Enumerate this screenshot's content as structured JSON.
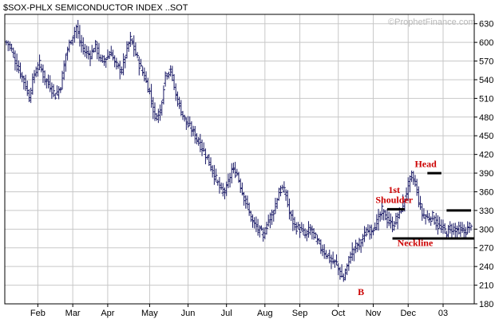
{
  "chart_data": {
    "type": "bar",
    "subtype": "ohlc",
    "title": "$SOX-PHLX SEMICONDUCTOR INDEX ..SOT",
    "watermark": "©ProphetFinance.com",
    "xlabel": "",
    "ylabel": "",
    "ylim": [
      180,
      645
    ],
    "yticks": [
      180,
      210,
      240,
      270,
      300,
      330,
      360,
      390,
      420,
      450,
      480,
      510,
      540,
      570,
      600,
      630
    ],
    "xtick_labels": [
      "Feb",
      "Mar",
      "Apr",
      "May",
      "Jun",
      "Jul",
      "Aug",
      "Sep",
      "Oct",
      "Nov",
      "Dec",
      "03"
    ],
    "xtick_index": [
      18,
      38,
      58,
      82,
      104,
      126,
      148,
      168,
      190,
      210,
      230,
      250
    ],
    "grid": true,
    "colors": {
      "bars": "#1a1a66",
      "grid": "#c8c8c8",
      "levels": "#000000",
      "annotation": "#cc0000",
      "frame": "#000000"
    },
    "series": [
      {
        "type": "ohlc",
        "waypoints": [
          [
            0,
            600
          ],
          [
            2,
            595
          ],
          [
            4,
            580
          ],
          [
            6,
            562
          ],
          [
            9,
            545
          ],
          [
            11,
            530
          ],
          [
            13,
            512
          ],
          [
            16,
            550
          ],
          [
            19,
            565
          ],
          [
            22,
            540
          ],
          [
            25,
            530
          ],
          [
            28,
            515
          ],
          [
            31,
            530
          ],
          [
            34,
            580
          ],
          [
            37,
            605
          ],
          [
            40,
            625
          ],
          [
            42,
            600
          ],
          [
            45,
            585
          ],
          [
            48,
            580
          ],
          [
            51,
            595
          ],
          [
            54,
            570
          ],
          [
            57,
            575
          ],
          [
            60,
            585
          ],
          [
            62,
            565
          ],
          [
            64,
            560
          ],
          [
            66,
            555
          ],
          [
            69,
            590
          ],
          [
            71,
            605
          ],
          [
            73,
            590
          ],
          [
            76,
            565
          ],
          [
            79,
            545
          ],
          [
            82,
            520
          ],
          [
            85,
            480
          ],
          [
            88,
            490
          ],
          [
            91,
            550
          ],
          [
            94,
            555
          ],
          [
            97,
            515
          ],
          [
            100,
            490
          ],
          [
            103,
            470
          ],
          [
            106,
            460
          ],
          [
            110,
            440
          ],
          [
            114,
            420
          ],
          [
            117,
            400
          ],
          [
            120,
            380
          ],
          [
            123,
            360
          ],
          [
            126,
            365
          ],
          [
            129,
            395
          ],
          [
            132,
            390
          ],
          [
            135,
            360
          ],
          [
            138,
            335
          ],
          [
            141,
            310
          ],
          [
            144,
            300
          ],
          [
            147,
            290
          ],
          [
            150,
            315
          ],
          [
            153,
            330
          ],
          [
            156,
            360
          ],
          [
            158,
            365
          ],
          [
            160,
            355
          ],
          [
            162,
            325
          ],
          [
            165,
            305
          ],
          [
            168,
            300
          ],
          [
            171,
            290
          ],
          [
            174,
            300
          ],
          [
            177,
            285
          ],
          [
            180,
            270
          ],
          [
            183,
            260
          ],
          [
            186,
            248
          ],
          [
            189,
            245
          ],
          [
            191,
            228
          ],
          [
            193,
            220
          ],
          [
            195,
            240
          ],
          [
            197,
            260
          ],
          [
            200,
            272
          ],
          [
            203,
            280
          ],
          [
            206,
            295
          ],
          [
            209,
            300
          ],
          [
            212,
            310
          ],
          [
            215,
            330
          ],
          [
            218,
            315
          ],
          [
            221,
            305
          ],
          [
            224,
            320
          ],
          [
            227,
            340
          ],
          [
            230,
            370
          ],
          [
            232,
            385
          ],
          [
            234,
            375
          ],
          [
            236,
            345
          ],
          [
            238,
            325
          ],
          [
            241,
            318
          ],
          [
            244,
            320
          ],
          [
            247,
            305
          ],
          [
            250,
            300
          ],
          [
            252,
            295
          ],
          [
            254,
            302
          ],
          [
            257,
            300
          ],
          [
            260,
            298
          ],
          [
            262,
            295
          ],
          [
            264,
            300
          ],
          [
            266,
            310
          ]
        ]
      }
    ],
    "levels": [
      {
        "y": 332,
        "x": [
          218,
          228
        ]
      },
      {
        "y": 390,
        "x": [
          241,
          249
        ]
      },
      {
        "y": 330,
        "x": [
          252,
          266
        ]
      },
      {
        "y": 285,
        "x": [
          221,
          268
        ]
      }
    ],
    "annotations": [
      {
        "text": "Head",
        "x": 240,
        "y": 400
      },
      {
        "text": "1st",
        "x": 222,
        "y": 358
      },
      {
        "text": "Shoulder",
        "x": 222,
        "y": 342
      },
      {
        "text": "Neckline",
        "x": 234,
        "y": 273
      },
      {
        "text": "B",
        "x": 203,
        "y": 194
      }
    ]
  }
}
